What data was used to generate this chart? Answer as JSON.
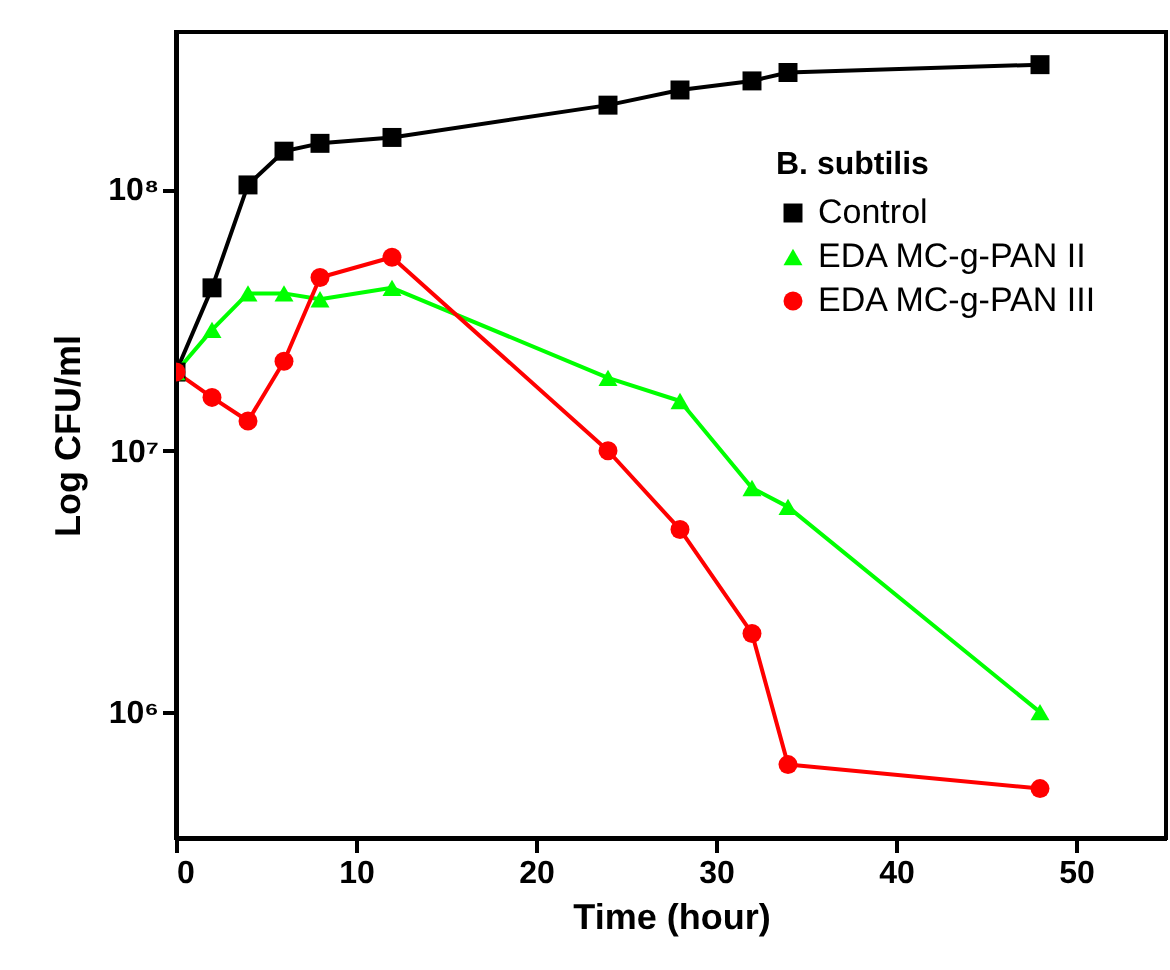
{
  "chart_data": {
    "type": "line",
    "xlabel": "Time (hour)",
    "ylabel": "Log CFU/ml",
    "legend_title": "B. subtilis",
    "log": "y",
    "grid": false,
    "legend": "top right",
    "line_style": "solid",
    "xlim": [
      0,
      55
    ],
    "xticks": [
      0,
      10,
      20,
      30,
      40,
      50
    ],
    "ylim": [
      330000,
      400000000
    ],
    "yticks": [
      {
        "value": 1000000,
        "label": "10⁶"
      },
      {
        "value": 10000000,
        "label": "10⁷"
      },
      {
        "value": 100000000,
        "label": "10⁸"
      }
    ],
    "x": [
      0,
      2,
      4,
      6,
      8,
      12,
      24,
      28,
      32,
      34,
      48
    ],
    "series": [
      {
        "name": "Control",
        "color": "#000000",
        "marker": "square",
        "values": [
          20000000,
          42000000,
          104000000,
          140000000,
          150000000,
          158000000,
          210000000,
          240000000,
          260000000,
          280000000,
          300000000
        ]
      },
      {
        "name": "EDA MC-g-PAN II",
        "color": "#00ff00",
        "marker": "triangle",
        "values": [
          20000000,
          29000000,
          40000000,
          40000000,
          38000000,
          42000000,
          19000000,
          15500000,
          7200000,
          6100000,
          1000000
        ]
      },
      {
        "name": "EDA MC-g-PAN III",
        "color": "#ff0000",
        "marker": "circle",
        "values": [
          20000000,
          16000000,
          13000000,
          22000000,
          46000000,
          55000000,
          10000000,
          5000000,
          2000000,
          630000,
          510000
        ]
      }
    ]
  }
}
